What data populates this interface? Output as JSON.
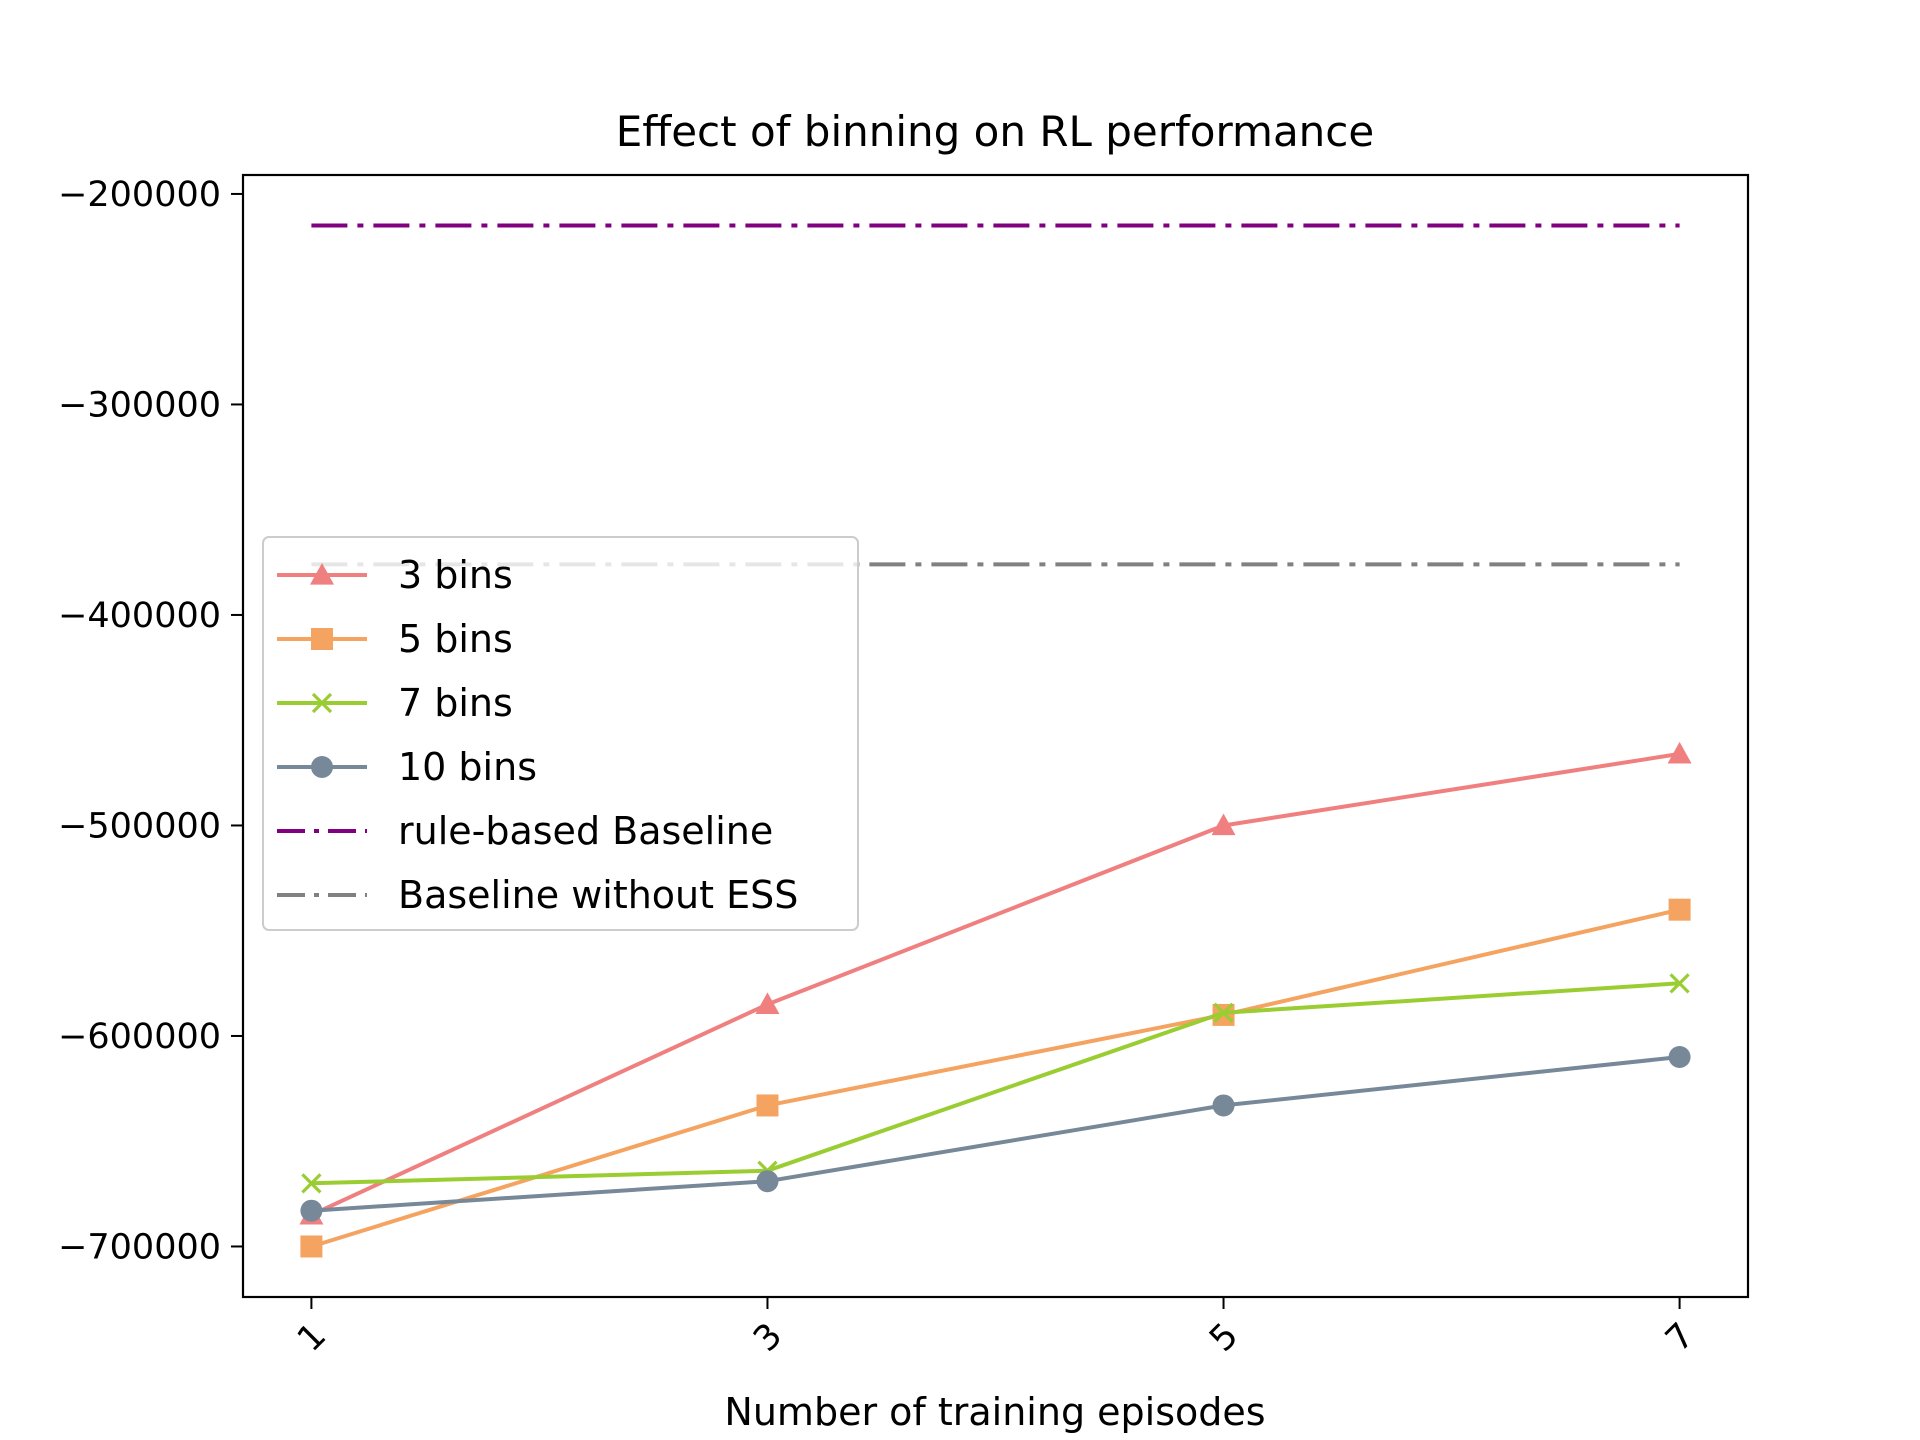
{
  "chart_data": {
    "type": "line",
    "title": "Effect of binning on RL performance",
    "xlabel": "Number of training episodes",
    "ylabel": "",
    "x": [
      1,
      3,
      5,
      7
    ],
    "x_tick_labels": [
      "1",
      "3",
      "5",
      "7"
    ],
    "y_ticks": [
      -200000,
      -300000,
      -400000,
      -500000,
      -600000,
      -700000
    ],
    "y_tick_labels": [
      "−200000",
      "−300000",
      "−400000",
      "−500000",
      "−600000",
      "−700000"
    ],
    "xlim": [
      0.7,
      7.3
    ],
    "ylim": [
      -724000,
      -191000
    ],
    "grid": false,
    "legend_position": "center-left",
    "series": [
      {
        "name": "3 bins",
        "values": [
          -685000,
          -585000,
          -500000,
          -466000
        ],
        "color": "#f08080",
        "marker": "triangle",
        "linestyle": "solid"
      },
      {
        "name": "5 bins",
        "values": [
          -700000,
          -633000,
          -590000,
          -540000
        ],
        "color": "#f4a460",
        "marker": "square",
        "linestyle": "solid"
      },
      {
        "name": "7 bins",
        "values": [
          -670000,
          -664000,
          -589000,
          -575000
        ],
        "color": "#9acd32",
        "marker": "x",
        "linestyle": "solid"
      },
      {
        "name": "10 bins",
        "values": [
          -683000,
          -669000,
          -633000,
          -610000
        ],
        "color": "#778899",
        "marker": "circle",
        "linestyle": "solid"
      },
      {
        "name": "rule-based Baseline",
        "values": [
          -215000,
          -215000,
          -215000,
          -215000
        ],
        "color": "#800080",
        "marker": "none",
        "linestyle": "dashdot"
      },
      {
        "name": "Baseline without ESS",
        "values": [
          -376000,
          -376000,
          -376000,
          -376000
        ],
        "color": "#808080",
        "marker": "none",
        "linestyle": "dashdot"
      }
    ]
  }
}
